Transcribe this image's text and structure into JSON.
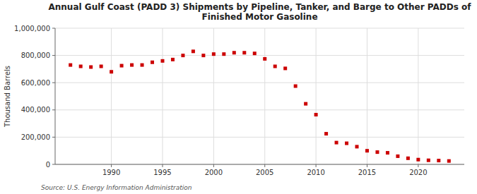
{
  "chart_data": {
    "type": "scatter",
    "title": "Annual Gulf Coast (PADD 3) Shipments by Pipeline, Tanker, and Barge to Other PADDs of\nFinished Motor Gasoline",
    "y_label": "Thousand Barrels",
    "annotations": [
      "Source: U.S. Energy Information Administration"
    ],
    "color": "#cc0000",
    "marker": "square",
    "grid": true,
    "x": [
      1986,
      1987,
      1988,
      1989,
      1990,
      1991,
      1992,
      1993,
      1994,
      1995,
      1996,
      1997,
      1998,
      1999,
      2000,
      2001,
      2002,
      2003,
      2004,
      2005,
      2006,
      2007,
      2008,
      2009,
      2010,
      2011,
      2012,
      2013,
      2014,
      2015,
      2016,
      2017,
      2018,
      2019,
      2020,
      2021,
      2022,
      2023
    ],
    "values": [
      730000,
      720000,
      715000,
      720000,
      680000,
      725000,
      730000,
      730000,
      750000,
      760000,
      770000,
      800000,
      830000,
      800000,
      810000,
      810000,
      820000,
      820000,
      815000,
      775000,
      720000,
      705000,
      575000,
      445000,
      365000,
      225000,
      160000,
      155000,
      130000,
      100000,
      90000,
      85000,
      60000,
      45000,
      35000,
      30000,
      28000,
      25000
    ],
    "xlim": [
      1984.5,
      2024.5
    ],
    "xticks": [
      1990,
      1995,
      2000,
      2005,
      2010,
      2015,
      2020
    ],
    "ylim": [
      0,
      1000000
    ],
    "yticks": [
      0,
      {
        "value": 200000,
        "label": "200,000"
      },
      {
        "value": 400000,
        "label": "400,000"
      },
      {
        "value": 600000,
        "label": "600,000"
      },
      {
        "value": 800000,
        "label": "800,000"
      },
      {
        "value": 1000000,
        "label": "1,000,000"
      }
    ]
  }
}
